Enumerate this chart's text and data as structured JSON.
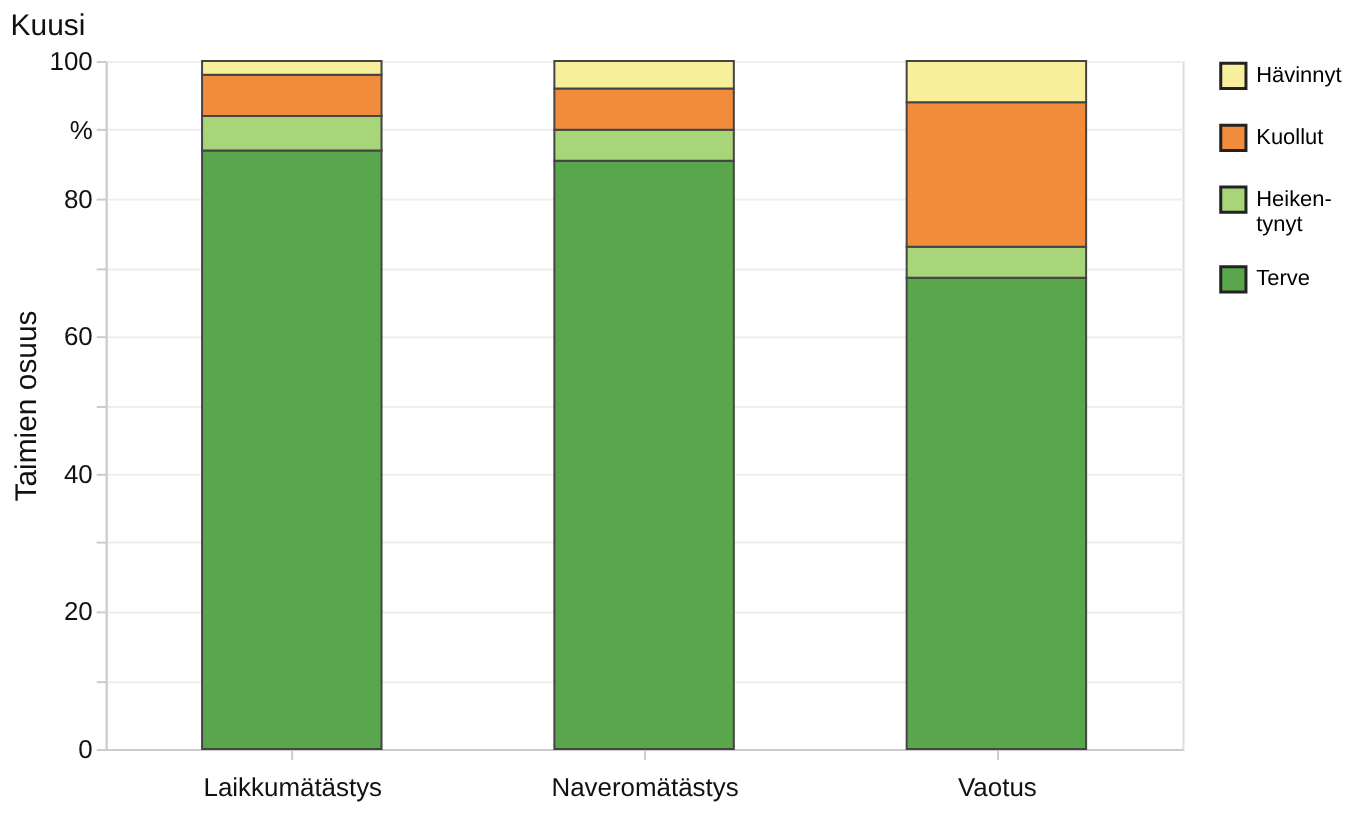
{
  "chart_data": {
    "type": "bar",
    "stacked": true,
    "title": "Kuusi",
    "ylabel": "Taimien osuus",
    "categories": [
      "Laikkumätästys",
      "Naveromätästys",
      "Vaotus"
    ],
    "series": [
      {
        "name": "Terve",
        "color": "#5aa64c",
        "values": [
          87,
          85.5,
          68.5
        ]
      },
      {
        "name": "Heiken-\ntynyt",
        "color": "#a8d47a",
        "values": [
          5,
          4.5,
          4.5
        ]
      },
      {
        "name": "Kuollut",
        "color": "#f08c3c",
        "values": [
          6,
          6,
          21
        ]
      },
      {
        "name": "Hävinnyt",
        "color": "#f8ef9c",
        "values": [
          2,
          4,
          6
        ]
      }
    ],
    "ylim": [
      0,
      100
    ],
    "yticks": [
      0,
      {
        "value": 10,
        "label": null
      },
      20,
      {
        "value": 30,
        "label": null
      },
      40,
      {
        "value": 50,
        "label": null
      },
      60,
      {
        "value": 70,
        "label": null
      },
      80,
      {
        "value": 90,
        "label": "%"
      },
      100
    ],
    "grid": "y",
    "legend": "top right"
  }
}
